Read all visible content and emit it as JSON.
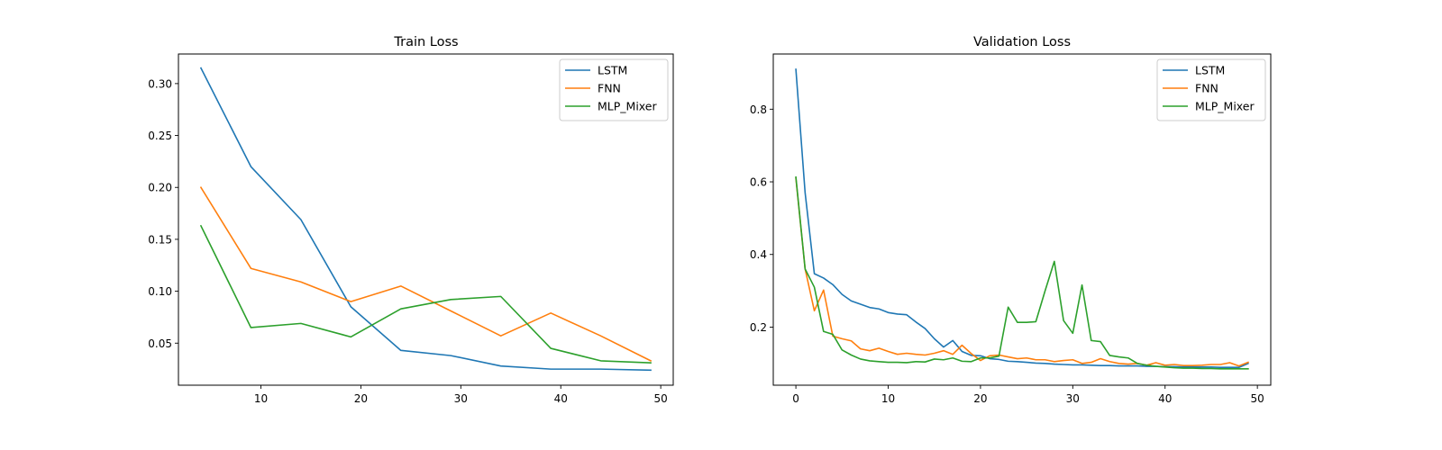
{
  "chart_data": [
    {
      "type": "line",
      "title": "Train Loss",
      "xlabel": "",
      "ylabel": "",
      "xlim": [
        1.75,
        51.25
      ],
      "ylim": [
        0.0095,
        0.3285
      ],
      "xticks": [
        10,
        20,
        30,
        40,
        50
      ],
      "xtick_labels": [
        "10",
        "20",
        "30",
        "40",
        "50"
      ],
      "yticks": [
        0.05,
        0.1,
        0.15,
        0.2,
        0.25,
        0.3
      ],
      "ytick_labels": [
        "0.05",
        "0.10",
        "0.15",
        "0.20",
        "0.25",
        "0.30"
      ],
      "legend": "top-right",
      "grid": false,
      "x": [
        4,
        9,
        14,
        19,
        24,
        29,
        34,
        39,
        44,
        49
      ],
      "series": [
        {
          "name": "LSTM",
          "color": "#1f77b4",
          "values": [
            0.315,
            0.22,
            0.169,
            0.085,
            0.043,
            0.038,
            0.028,
            0.025,
            0.025,
            0.024
          ]
        },
        {
          "name": "FNN",
          "color": "#ff7f0e",
          "values": [
            0.2,
            0.122,
            0.109,
            0.09,
            0.105,
            0.081,
            0.057,
            0.079,
            0.057,
            0.033
          ]
        },
        {
          "name": "MLP_Mixer",
          "color": "#2ca02c",
          "values": [
            0.163,
            0.065,
            0.069,
            0.056,
            0.083,
            0.092,
            0.095,
            0.045,
            0.033,
            0.031
          ]
        }
      ]
    },
    {
      "type": "line",
      "title": "Validation Loss",
      "xlabel": "",
      "ylabel": "",
      "xlim": [
        -2.45,
        51.45
      ],
      "ylim": [
        0.04,
        0.952
      ],
      "xticks": [
        0,
        10,
        20,
        30,
        40,
        50
      ],
      "xtick_labels": [
        "0",
        "10",
        "20",
        "30",
        "40",
        "50"
      ],
      "yticks": [
        0.2,
        0.4,
        0.6,
        0.8
      ],
      "ytick_labels": [
        "0.2",
        "0.4",
        "0.6",
        "0.8"
      ],
      "legend": "top-right",
      "grid": false,
      "x": [
        0,
        1,
        2,
        3,
        4,
        5,
        6,
        7,
        8,
        9,
        10,
        11,
        12,
        13,
        14,
        15,
        16,
        17,
        18,
        19,
        20,
        21,
        22,
        23,
        24,
        25,
        26,
        27,
        28,
        29,
        30,
        31,
        32,
        33,
        34,
        35,
        36,
        37,
        38,
        39,
        40,
        41,
        42,
        43,
        44,
        45,
        46,
        47,
        48,
        49
      ],
      "series": [
        {
          "name": "LSTM",
          "color": "#1f77b4",
          "values": [
            0.91,
            0.57,
            0.347,
            0.335,
            0.317,
            0.29,
            0.272,
            0.263,
            0.254,
            0.25,
            0.24,
            0.236,
            0.234,
            0.214,
            0.196,
            0.168,
            0.145,
            0.163,
            0.133,
            0.122,
            0.121,
            0.113,
            0.111,
            0.106,
            0.105,
            0.103,
            0.101,
            0.1,
            0.098,
            0.097,
            0.096,
            0.096,
            0.095,
            0.094,
            0.094,
            0.093,
            0.093,
            0.093,
            0.092,
            0.092,
            0.091,
            0.091,
            0.09,
            0.09,
            0.09,
            0.09,
            0.089,
            0.089,
            0.089,
            0.1
          ]
        },
        {
          "name": "FNN",
          "color": "#ff7f0e",
          "values": [
            0.61,
            0.36,
            0.245,
            0.302,
            0.175,
            0.168,
            0.162,
            0.14,
            0.135,
            0.142,
            0.133,
            0.125,
            0.128,
            0.125,
            0.123,
            0.128,
            0.135,
            0.125,
            0.15,
            0.127,
            0.108,
            0.121,
            0.123,
            0.118,
            0.113,
            0.115,
            0.11,
            0.11,
            0.105,
            0.108,
            0.11,
            0.1,
            0.103,
            0.113,
            0.105,
            0.1,
            0.098,
            0.1,
            0.095,
            0.102,
            0.095,
            0.097,
            0.094,
            0.094,
            0.095,
            0.097,
            0.097,
            0.102,
            0.093,
            0.103
          ]
        },
        {
          "name": "MLP_Mixer",
          "color": "#2ca02c",
          "values": [
            0.613,
            0.36,
            0.31,
            0.188,
            0.18,
            0.137,
            0.123,
            0.112,
            0.107,
            0.105,
            0.103,
            0.103,
            0.102,
            0.105,
            0.104,
            0.112,
            0.11,
            0.115,
            0.106,
            0.105,
            0.115,
            0.115,
            0.12,
            0.255,
            0.213,
            0.213,
            0.215,
            0.3,
            0.381,
            0.218,
            0.183,
            0.316,
            0.163,
            0.16,
            0.122,
            0.118,
            0.115,
            0.1,
            0.095,
            0.092,
            0.09,
            0.088,
            0.087,
            0.087,
            0.086,
            0.086,
            0.085,
            0.085,
            0.085,
            0.085
          ]
        }
      ]
    }
  ]
}
